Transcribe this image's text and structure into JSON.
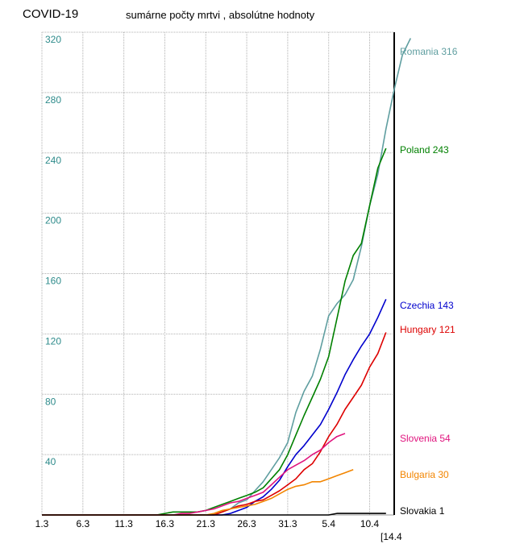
{
  "header": {
    "title": "COVID-19",
    "subtitle": "sumárne počty mrtvi , absolútne hodnoty"
  },
  "chart_data": {
    "type": "line",
    "title": "COVID-19",
    "subtitle": "sumárne počty mrtvi , absolútne hodnoty",
    "xlabel": "",
    "ylabel": "",
    "x_start": "1.3",
    "x_end": "14.4",
    "x_tick_labels": [
      "1.3",
      "6.3",
      "11.3",
      "16.3",
      "21.3",
      "26.3",
      "31.3",
      "5.4",
      "10.4"
    ],
    "x_end_label": "[14.4",
    "y_ticks": [
      40,
      80,
      120,
      160,
      200,
      240,
      280,
      320
    ],
    "ylim": [
      0,
      320
    ],
    "grid": true,
    "legend": "end-of-line labels",
    "series": [
      {
        "name": "Romania",
        "label": "Romania 316",
        "color": "#5f9ea0",
        "values": [
          [
            1,
            0
          ],
          [
            21,
            0
          ],
          [
            22,
            0
          ],
          [
            23,
            2
          ],
          [
            24,
            4
          ],
          [
            25,
            8
          ],
          [
            26,
            10
          ],
          [
            27,
            16
          ],
          [
            28,
            22
          ],
          [
            29,
            30
          ],
          [
            30,
            38
          ],
          [
            31,
            48
          ],
          [
            32,
            68
          ],
          [
            33,
            82
          ],
          [
            34,
            92
          ],
          [
            35,
            110
          ],
          [
            36,
            132
          ],
          [
            37,
            140
          ],
          [
            38,
            146
          ],
          [
            39,
            156
          ],
          [
            40,
            178
          ],
          [
            41,
            205
          ],
          [
            42,
            226
          ],
          [
            43,
            256
          ],
          [
            44,
            282
          ],
          [
            45,
            305
          ],
          [
            46,
            316
          ]
        ]
      },
      {
        "name": "Poland",
        "label": "Poland 243",
        "color": "#008000",
        "values": [
          [
            1,
            0
          ],
          [
            15,
            0
          ],
          [
            16,
            1
          ],
          [
            17,
            2
          ],
          [
            18,
            2
          ],
          [
            19,
            2
          ],
          [
            20,
            2
          ],
          [
            21,
            3
          ],
          [
            22,
            5
          ],
          [
            23,
            7
          ],
          [
            24,
            9
          ],
          [
            25,
            11
          ],
          [
            26,
            13
          ],
          [
            27,
            15
          ],
          [
            28,
            18
          ],
          [
            29,
            24
          ],
          [
            30,
            30
          ],
          [
            31,
            40
          ],
          [
            32,
            53
          ],
          [
            33,
            66
          ],
          [
            34,
            78
          ],
          [
            35,
            90
          ],
          [
            36,
            105
          ],
          [
            37,
            130
          ],
          [
            38,
            155
          ],
          [
            39,
            172
          ],
          [
            40,
            180
          ],
          [
            41,
            205
          ],
          [
            42,
            230
          ],
          [
            43,
            243
          ]
        ]
      },
      {
        "name": "Czechia",
        "label": "Czechia 143",
        "color": "#0000cd",
        "values": [
          [
            1,
            0
          ],
          [
            23,
            0
          ],
          [
            24,
            1
          ],
          [
            25,
            3
          ],
          [
            26,
            5
          ],
          [
            27,
            9
          ],
          [
            28,
            12
          ],
          [
            29,
            17
          ],
          [
            30,
            23
          ],
          [
            31,
            32
          ],
          [
            32,
            40
          ],
          [
            33,
            46
          ],
          [
            34,
            53
          ],
          [
            35,
            60
          ],
          [
            36,
            70
          ],
          [
            37,
            81
          ],
          [
            38,
            93
          ],
          [
            39,
            103
          ],
          [
            40,
            112
          ],
          [
            41,
            120
          ],
          [
            42,
            131
          ],
          [
            43,
            143
          ]
        ]
      },
      {
        "name": "Hungary",
        "label": "Hungary 121",
        "color": "#dd0000",
        "values": [
          [
            1,
            0
          ],
          [
            22,
            0
          ],
          [
            23,
            2
          ],
          [
            24,
            4
          ],
          [
            25,
            6
          ],
          [
            26,
            7
          ],
          [
            27,
            9
          ],
          [
            28,
            10
          ],
          [
            29,
            13
          ],
          [
            30,
            16
          ],
          [
            31,
            20
          ],
          [
            32,
            24
          ],
          [
            33,
            30
          ],
          [
            34,
            34
          ],
          [
            35,
            42
          ],
          [
            36,
            52
          ],
          [
            37,
            60
          ],
          [
            38,
            70
          ],
          [
            39,
            78
          ],
          [
            40,
            86
          ],
          [
            41,
            98
          ],
          [
            42,
            107
          ],
          [
            43,
            121
          ]
        ]
      },
      {
        "name": "Slovenia",
        "label": "Slovenia 54",
        "color": "#e0147e",
        "values": [
          [
            1,
            0
          ],
          [
            17,
            0
          ],
          [
            18,
            1
          ],
          [
            19,
            1
          ],
          [
            20,
            2
          ],
          [
            21,
            3
          ],
          [
            22,
            4
          ],
          [
            23,
            6
          ],
          [
            24,
            8
          ],
          [
            25,
            9
          ],
          [
            26,
            11
          ],
          [
            27,
            13
          ],
          [
            28,
            15
          ],
          [
            29,
            20
          ],
          [
            30,
            25
          ],
          [
            31,
            30
          ],
          [
            32,
            33
          ],
          [
            33,
            36
          ],
          [
            34,
            40
          ],
          [
            35,
            43
          ],
          [
            36,
            48
          ],
          [
            37,
            52
          ],
          [
            38,
            54
          ]
        ]
      },
      {
        "name": "Bulgaria",
        "label": "Bulgaria 30",
        "color": "#f28500",
        "values": [
          [
            1,
            0
          ],
          [
            21,
            0
          ],
          [
            22,
            1
          ],
          [
            23,
            3
          ],
          [
            24,
            4
          ],
          [
            25,
            5
          ],
          [
            26,
            6
          ],
          [
            27,
            7
          ],
          [
            28,
            9
          ],
          [
            29,
            11
          ],
          [
            30,
            14
          ],
          [
            31,
            17
          ],
          [
            32,
            19
          ],
          [
            33,
            20
          ],
          [
            34,
            22
          ],
          [
            35,
            22
          ],
          [
            36,
            24
          ],
          [
            37,
            26
          ],
          [
            38,
            28
          ],
          [
            39,
            30
          ]
        ]
      },
      {
        "name": "Slovakia",
        "label": "Slovakia 1",
        "color": "#000000",
        "values": [
          [
            1,
            0
          ],
          [
            36,
            0
          ],
          [
            37,
            1
          ],
          [
            43,
            1
          ]
        ]
      }
    ]
  }
}
